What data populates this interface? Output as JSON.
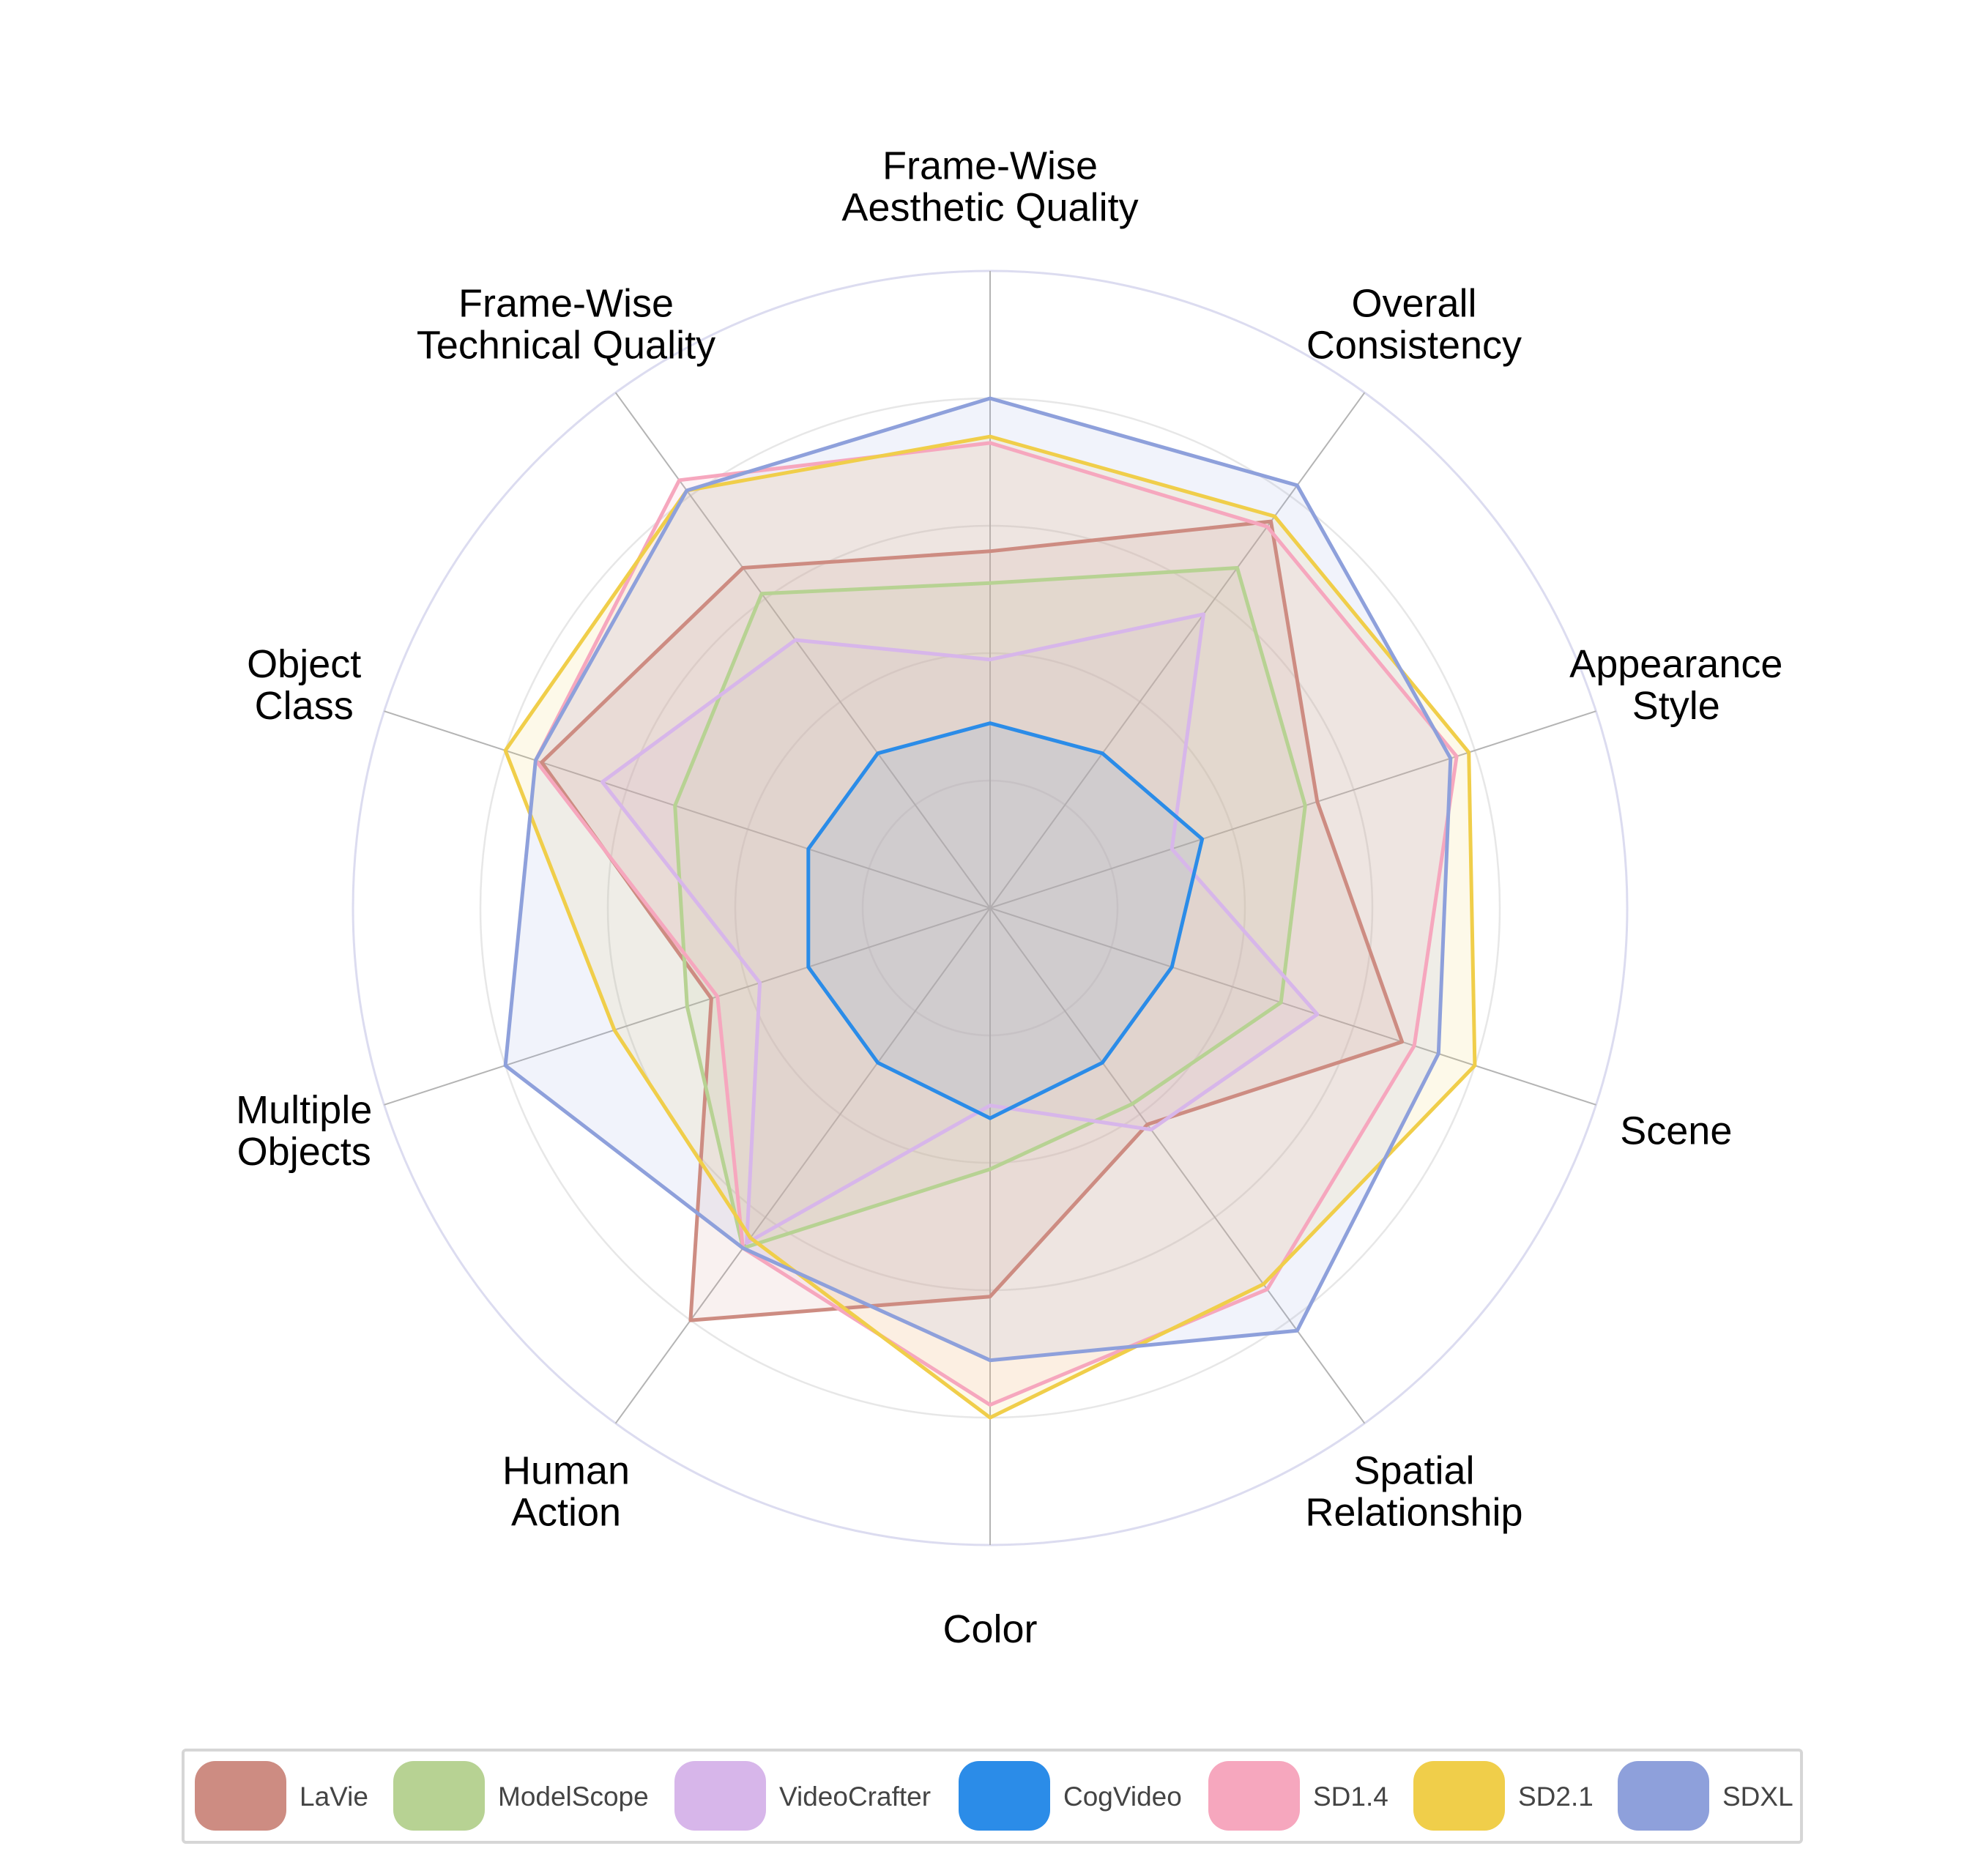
{
  "chart_data": {
    "type": "radar",
    "axes": [
      [
        "Frame-Wise",
        "Aesthetic Quality"
      ],
      [
        "Overall",
        "Consistency"
      ],
      [
        "Appearance",
        "Style"
      ],
      [
        "Scene"
      ],
      [
        "Spatial",
        "Relationship"
      ],
      [
        "Color"
      ],
      [
        "Human",
        "Action"
      ],
      [
        "Multiple",
        "Objects"
      ],
      [
        "Object",
        "Class"
      ],
      [
        "Frame-Wise",
        "Technical Quality"
      ]
    ],
    "rlim": [
      0,
      1
    ],
    "grid_rings": [
      0.2,
      0.4,
      0.6,
      0.8,
      1.0
    ],
    "legend_position": "bottom",
    "series": [
      {
        "name": "LaVie",
        "color": "#CD8C82",
        "values": [
          0.56,
          0.75,
          0.54,
          0.68,
          0.42,
          0.61,
          0.8,
          0.46,
          0.74,
          0.66
        ]
      },
      {
        "name": "ModelScope",
        "color": "#B7D293",
        "values": [
          0.51,
          0.66,
          0.52,
          0.48,
          0.38,
          0.41,
          0.66,
          0.5,
          0.52,
          0.61
        ]
      },
      {
        "name": "VideoCrafter",
        "color": "#D7B6EA",
        "values": [
          0.39,
          0.57,
          0.3,
          0.54,
          0.43,
          0.31,
          0.65,
          0.38,
          0.64,
          0.52
        ]
      },
      {
        "name": "CogVideo",
        "color": "#2B8CE8",
        "values": [
          0.29,
          0.3,
          0.35,
          0.3,
          0.3,
          0.33,
          0.3,
          0.3,
          0.3,
          0.3
        ]
      },
      {
        "name": "SD1.4",
        "color": "#F6A7BE",
        "values": [
          0.73,
          0.74,
          0.77,
          0.7,
          0.74,
          0.78,
          0.66,
          0.45,
          0.75,
          0.83
        ]
      },
      {
        "name": "SD2.1",
        "color": "#F0CE4A",
        "values": [
          0.74,
          0.76,
          0.79,
          0.8,
          0.73,
          0.8,
          0.64,
          0.62,
          0.8,
          0.81
        ]
      },
      {
        "name": "SDXL",
        "color": "#8EA0DB",
        "values": [
          0.8,
          0.82,
          0.76,
          0.74,
          0.82,
          0.71,
          0.66,
          0.8,
          0.75,
          0.81
        ]
      }
    ]
  }
}
